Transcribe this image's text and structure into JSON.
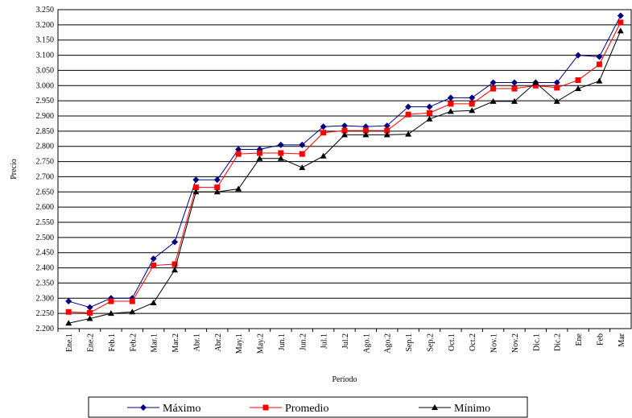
{
  "chart_data": {
    "type": "line",
    "y_label": "Precio",
    "x_label": "Período",
    "categories": [
      "Ene.1",
      "Ene.2",
      "Feb.1",
      "Feb.2",
      "Mar.1",
      "Mar.2",
      "Abr.1",
      "Abr.2",
      "May.1",
      "May.2",
      "Jun.1",
      "Jun.2",
      "Jul.1",
      "Jul.2",
      "Ago.1",
      "Ago.2",
      "Sep.1",
      "Sep.2",
      "Oct.1",
      "Oct.2",
      "Nov.1",
      "Nov.2",
      "Dic.1",
      "Dic.2",
      "Ene",
      "Feb",
      "Mar"
    ],
    "series": [
      {
        "name": "Máximo",
        "color": "#000080",
        "marker": "diamond",
        "values": [
          2290,
          2270,
          2300,
          2300,
          2430,
          2485,
          2690,
          2690,
          2790,
          2790,
          2805,
          2805,
          2865,
          2868,
          2865,
          2868,
          2930,
          2930,
          2960,
          2960,
          3010,
          3010,
          3010,
          3010,
          3100,
          3095,
          3230
        ]
      },
      {
        "name": "Promedio",
        "color": "#ff0000",
        "marker": "square",
        "values": [
          2255,
          2252,
          2290,
          2290,
          2408,
          2412,
          2665,
          2665,
          2775,
          2778,
          2778,
          2775,
          2845,
          2852,
          2852,
          2852,
          2905,
          2910,
          2940,
          2940,
          2990,
          2990,
          3000,
          2993,
          3018,
          3070,
          3208
        ]
      },
      {
        "name": "Mínimo",
        "color": "#000000",
        "marker": "triangle",
        "values": [
          2218,
          2233,
          2250,
          2255,
          2285,
          2393,
          2650,
          2650,
          2660,
          2760,
          2760,
          2730,
          2768,
          2838,
          2838,
          2838,
          2840,
          2890,
          2915,
          2918,
          2948,
          2948,
          3010,
          2948,
          2990,
          3015,
          3180
        ]
      }
    ],
    "ylim": [
      2200,
      3250
    ],
    "yticks": [
      {
        "value": 2200,
        "label": "2.200"
      },
      {
        "value": 2250,
        "label": "2.250"
      },
      {
        "value": 2300,
        "label": "2.300"
      },
      {
        "value": 2350,
        "label": "2.350"
      },
      {
        "value": 2400,
        "label": "2.400"
      },
      {
        "value": 2450,
        "label": "2.450"
      },
      {
        "value": 2500,
        "label": "2.500"
      },
      {
        "value": 2550,
        "label": "2.550"
      },
      {
        "value": 2600,
        "label": "2.600"
      },
      {
        "value": 2650,
        "label": "2.650"
      },
      {
        "value": 2700,
        "label": "2.700"
      },
      {
        "value": 2750,
        "label": "2.750"
      },
      {
        "value": 2800,
        "label": "2.800"
      },
      {
        "value": 2850,
        "label": "2.850"
      },
      {
        "value": 2900,
        "label": "2.900"
      },
      {
        "value": 2950,
        "label": "2.950"
      },
      {
        "value": 3000,
        "label": "3.000"
      },
      {
        "value": 3050,
        "label": "3.050"
      },
      {
        "value": 3100,
        "label": "3.100"
      },
      {
        "value": 3150,
        "label": "3.150"
      },
      {
        "value": 3200,
        "label": "3.200"
      },
      {
        "value": 3250,
        "label": "3.250"
      }
    ],
    "grid": true,
    "legend": "bottom"
  }
}
